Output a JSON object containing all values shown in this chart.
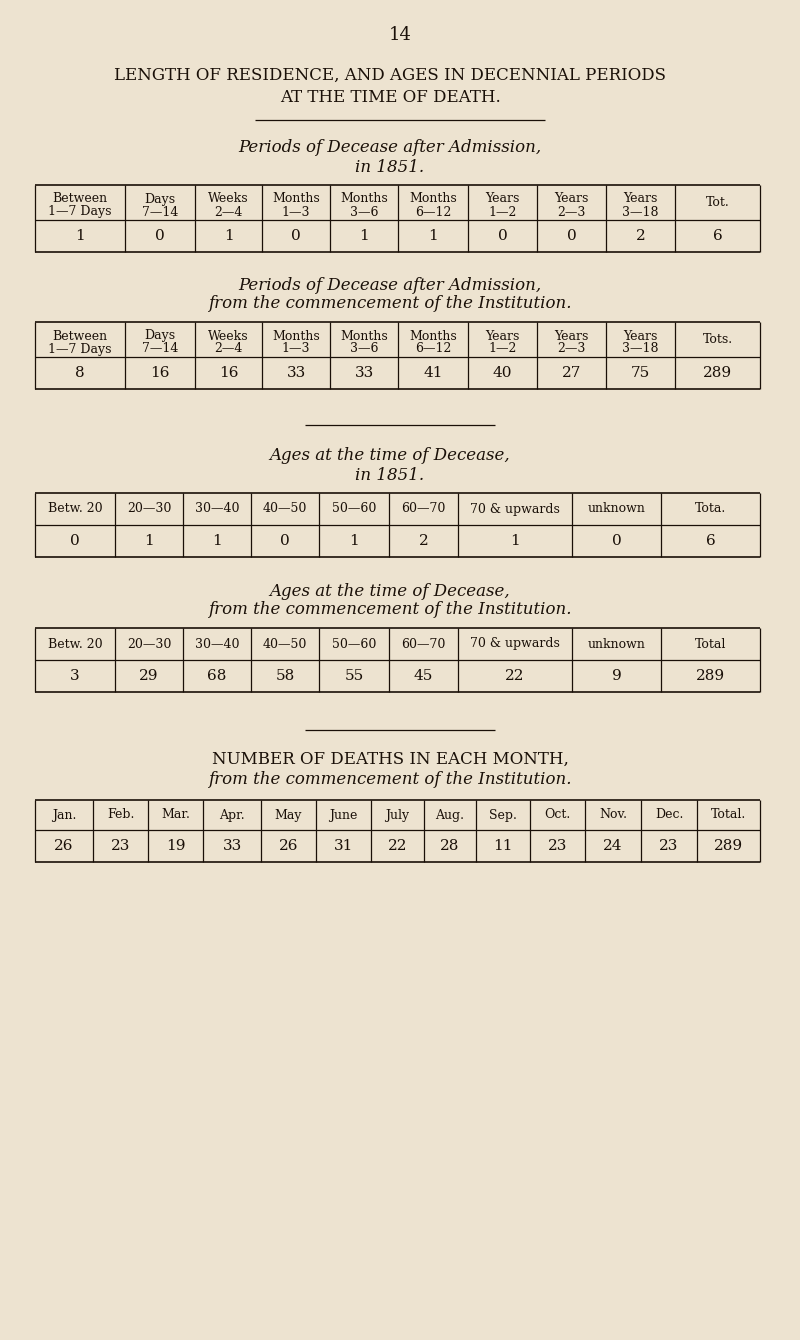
{
  "page_number": "14",
  "title_line1": "LENGTH OF RESIDENCE, AND AGES IN DECENNIAL PERIODS",
  "title_line2": "AT THE TIME OF DEATH.",
  "bg_color": "#ede3d0",
  "text_color": "#1a1008",
  "table1_title1": "Periods of Decease after Admission,",
  "table1_title2": "in 1851.",
  "table1_headers": [
    "Between\n1—7 Days",
    "Days\n7—14",
    "Weeks\n2—4",
    "Months\n1—3",
    "Months\n3—6",
    "Months\n6—12",
    "Years\n1—2",
    "Years\n2—3",
    "Years\n3—18",
    "Tot."
  ],
  "table1_values": [
    "1",
    "0",
    "1",
    "0",
    "1",
    "1",
    "0",
    "0",
    "2",
    "6"
  ],
  "table2_title1": "Periods of Decease after Admission,",
  "table2_title2": "from the commencement of the Institution.",
  "table2_headers": [
    "Between\n1—7 Days",
    "Days\n7—14",
    "Weeks\n2—4",
    "Months\n1—3",
    "Months\n3—6",
    "Months\n6—12",
    "Years\n1—2",
    "Years\n2—3",
    "Years\n3—18",
    "Tots."
  ],
  "table2_values": [
    "8",
    "16",
    "16",
    "33",
    "33",
    "41",
    "40",
    "27",
    "75",
    "289"
  ],
  "table3_title1": "Ages at the time of Decease,",
  "table3_title2": "in 1851.",
  "table3_headers": [
    "Betw. 20",
    "20—30",
    "30—40",
    "40—50",
    "50—60",
    "60—70",
    "70 & upwards",
    "unknown",
    "Tota."
  ],
  "table3_values": [
    "0",
    "1",
    "1",
    "0",
    "1",
    "2",
    "1",
    "0",
    "6"
  ],
  "table4_title1": "Ages at the time of Decease,",
  "table4_title2": "from the commencement of the Institution.",
  "table4_headers": [
    "Betw. 20",
    "20—30",
    "30—40",
    "40—50",
    "50—60",
    "60—70",
    "70 & upwards",
    "unknown",
    "Total"
  ],
  "table4_values": [
    "3",
    "29",
    "68",
    "58",
    "55",
    "45",
    "22",
    "9",
    "289"
  ],
  "table5_title1": "NUMBER OF DEATHS IN EACH MONTH,",
  "table5_title2": "from the commencement of the Institution.",
  "table5_headers": [
    "Jan.",
    "Feb.",
    "Mar.",
    "Apr.",
    "May",
    "June",
    "July",
    "Aug.",
    "Sep.",
    "Oct.",
    "Nov.",
    "Dec.",
    "Total."
  ],
  "table5_values": [
    "26",
    "23",
    "19",
    "33",
    "26",
    "31",
    "22",
    "28",
    "11",
    "23",
    "24",
    "23",
    "289"
  ]
}
